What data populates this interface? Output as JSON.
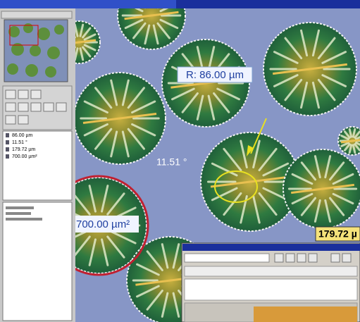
{
  "measurements": {
    "radius": "R: 86.00 µm",
    "angle": "11.51 °",
    "area": "700.00 µm²",
    "length": "179.72 µ"
  },
  "results_list": [
    "86.00 µm",
    "11.51 °",
    "179.72 µm",
    "700.00 µm²"
  ]
}
